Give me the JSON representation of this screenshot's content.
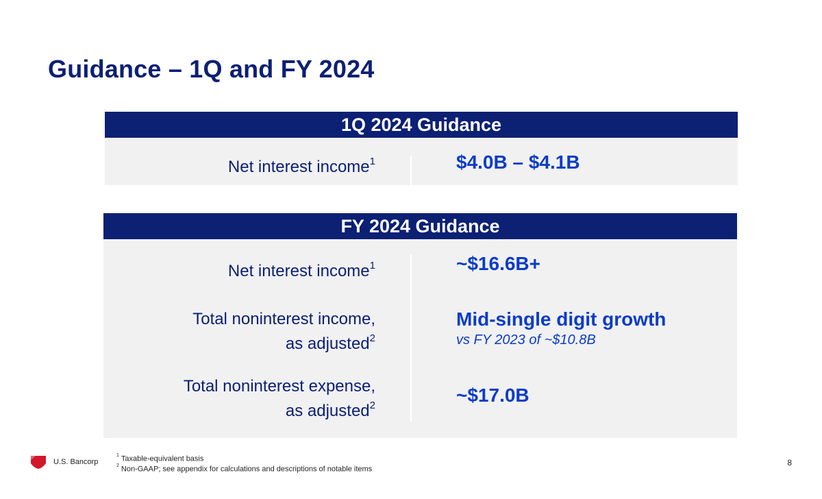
{
  "title": "Guidance – 1Q and FY 2024",
  "quarter_panel": {
    "header": "1Q 2024 Guidance",
    "rows": [
      {
        "label": "Net interest income",
        "label_sup": "1",
        "value": "$4.0B – $4.1B"
      }
    ]
  },
  "year_panel": {
    "header": "FY 2024 Guidance",
    "rows": [
      {
        "label": "Net interest income",
        "label_sup": "1",
        "value": "~$16.6B+"
      },
      {
        "label_line1": "Total noninterest income,",
        "label_line2": "as adjusted",
        "label_sup": "2",
        "value": "Mid-single digit growth",
        "subvalue": "vs FY 2023 of ~$10.8B"
      },
      {
        "label_line1": "Total noninterest expense,",
        "label_line2": "as adjusted",
        "label_sup": "2",
        "value": "~$17.0B"
      }
    ]
  },
  "footer": {
    "brand": "U.S. Bancorp",
    "page_number": "8",
    "footnotes": [
      {
        "marker": "1",
        "text": "Taxable-equivalent basis"
      },
      {
        "marker": "2",
        "text": "Non-GAAP; see appendix for calculations and descriptions of notable items"
      }
    ]
  },
  "colors": {
    "navy": "#0c2074",
    "blue": "#0a3cc8",
    "panel_bg": "#f1f1f2",
    "logo_red": "#d2182b"
  }
}
